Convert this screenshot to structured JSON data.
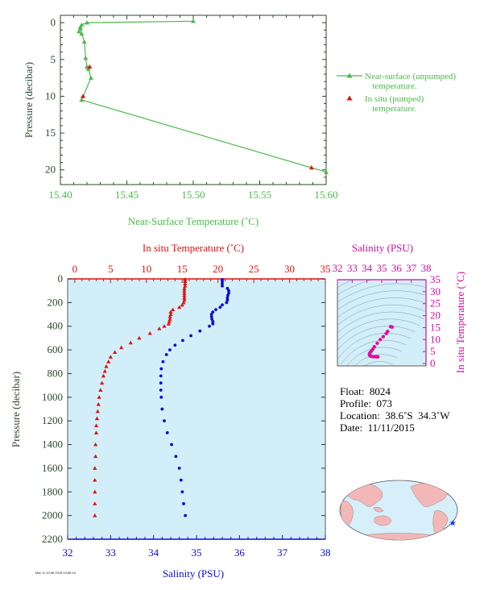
{
  "chart_data": [
    {
      "type": "line",
      "xlabel": "Near-Surface Temperature (˚C)",
      "ylabel": "Pressure (decibar)",
      "xlim": [
        15.4,
        15.6
      ],
      "ylim": [
        22,
        -1
      ],
      "xticks": [
        "15.40",
        "15.45",
        "15.50",
        "15.55",
        "15.60"
      ],
      "xtick_values": [
        15.4,
        15.45,
        15.5,
        15.55,
        15.6
      ],
      "yticks": [
        "0",
        "5",
        "10",
        "15",
        "20"
      ],
      "ytick_values": [
        0,
        5,
        10,
        15,
        20
      ],
      "legend_position": "right",
      "series": [
        {
          "name": "Near-surface (unpumped) temperature.",
          "legend_lines": [
            "Near-surface (unpumped)",
            "temperature."
          ],
          "color": "#4cb84c",
          "marker": "triangle",
          "x": [
            15.5,
            15.42,
            15.416,
            15.415,
            15.414,
            15.415,
            15.416,
            15.418,
            15.419,
            15.42,
            15.421,
            15.423,
            15.416,
            15.6
          ],
          "y": [
            -0.2,
            0.0,
            0.3,
            0.8,
            1.2,
            0.6,
            1.5,
            2.6,
            4.8,
            6.0,
            6.3,
            7.5,
            10.5,
            20.3
          ]
        },
        {
          "name": "In situ (pumped) temperature.",
          "legend_lines": [
            "In situ (pumped)",
            "temperature."
          ],
          "color": "#dd1111",
          "marker": "triangle",
          "x": [
            15.422,
            15.417,
            15.589
          ],
          "y": [
            6.0,
            10.0,
            19.7
          ]
        }
      ]
    },
    {
      "type": "scatter",
      "title_top": "In situ Temperature (˚C)",
      "xlabel": "Salinity (PSU)",
      "ylabel": "Pressure (decibar)",
      "temp_lim": [
        -1,
        35
      ],
      "temp_ticks": [
        "0",
        "5",
        "10",
        "15",
        "20",
        "25",
        "30",
        "35"
      ],
      "temp_tick_values": [
        0,
        5,
        10,
        15,
        20,
        25,
        30,
        35
      ],
      "sal_lim": [
        32,
        38
      ],
      "sal_ticks": [
        "32",
        "33",
        "34",
        "35",
        "36",
        "37",
        "38"
      ],
      "sal_tick_values": [
        32,
        33,
        34,
        35,
        36,
        37,
        38
      ],
      "pres_lim": [
        0,
        2200
      ],
      "pres_ticks": [
        "0",
        "200",
        "400",
        "600",
        "800",
        "1000",
        "1200",
        "1400",
        "1600",
        "1800",
        "2000",
        "2200"
      ],
      "pres_tick_values": [
        0,
        200,
        400,
        600,
        800,
        1000,
        1200,
        1400,
        1600,
        1800,
        2000,
        2200
      ],
      "temperature": {
        "color": "#e01010",
        "pressure": [
          5,
          20,
          40,
          60,
          80,
          100,
          120,
          140,
          160,
          180,
          200,
          220,
          240,
          260,
          280,
          300,
          320,
          340,
          360,
          380,
          400,
          420,
          460,
          500,
          540,
          580,
          620,
          660,
          700,
          740,
          780,
          820,
          880,
          940,
          1000,
          1060,
          1120,
          1180,
          1240,
          1300,
          1400,
          1500,
          1600,
          1700,
          1800,
          1900,
          2000
        ],
        "values": [
          15.4,
          15.4,
          15.4,
          15.4,
          15.3,
          15.3,
          15.3,
          15.3,
          15.3,
          15.3,
          15.2,
          15.0,
          14.6,
          13.7,
          13.4,
          13.4,
          13.3,
          13.3,
          13.2,
          13.1,
          12.5,
          11.8,
          10.5,
          9.0,
          7.8,
          6.5,
          5.6,
          5.0,
          4.7,
          4.4,
          4.2,
          4.0,
          3.8,
          3.6,
          3.4,
          3.3,
          3.2,
          3.1,
          3.0,
          3.0,
          2.9,
          2.9,
          2.8,
          2.8,
          2.8,
          2.8,
          2.8
        ]
      },
      "salinity": {
        "color": "#0a0ad8",
        "pressure": [
          5,
          20,
          40,
          60,
          80,
          100,
          120,
          140,
          160,
          180,
          200,
          220,
          240,
          260,
          280,
          300,
          320,
          340,
          360,
          380,
          400,
          440,
          480,
          520,
          560,
          600,
          640,
          700,
          760,
          820,
          880,
          940,
          1000,
          1100,
          1200,
          1300,
          1400,
          1500,
          1600,
          1700,
          1800,
          1900,
          2000
        ],
        "values": [
          35.6,
          35.6,
          35.6,
          35.6,
          35.72,
          35.75,
          35.75,
          35.73,
          35.72,
          35.72,
          35.7,
          35.6,
          35.55,
          35.45,
          35.38,
          35.35,
          35.35,
          35.36,
          35.38,
          35.38,
          35.3,
          35.08,
          34.87,
          34.68,
          34.5,
          34.38,
          34.3,
          34.22,
          34.18,
          34.17,
          34.17,
          34.17,
          34.18,
          34.2,
          34.25,
          34.32,
          34.42,
          34.52,
          34.6,
          34.64,
          34.67,
          34.7,
          34.74
        ]
      }
    },
    {
      "type": "scatter",
      "title_top": "Salinity (PSU)",
      "ylabel": "In situ Temperature (˚C)",
      "sal_lim": [
        32,
        38
      ],
      "sal_ticks": [
        "32",
        "33",
        "34",
        "35",
        "36",
        "37",
        "38"
      ],
      "sal_tick_values": [
        32,
        33,
        34,
        35,
        36,
        37,
        38
      ],
      "temp_lim": [
        -1,
        35
      ],
      "temp_ticks": [
        "0",
        "5",
        "10",
        "15",
        "20",
        "25",
        "30",
        "35"
      ],
      "temp_tick_values": [
        0,
        5,
        10,
        15,
        20,
        25,
        30,
        35
      ],
      "color": "#e0109a",
      "points": [
        [
          35.6,
          15.4
        ],
        [
          35.7,
          15.2
        ],
        [
          35.4,
          13.4
        ],
        [
          35.3,
          12.5
        ],
        [
          35.1,
          11.2
        ],
        [
          34.9,
          10.0
        ],
        [
          34.7,
          8.5
        ],
        [
          34.5,
          7.0
        ],
        [
          34.4,
          6.0
        ],
        [
          34.3,
          5.2
        ],
        [
          34.22,
          4.6
        ],
        [
          34.18,
          4.2
        ],
        [
          34.17,
          3.8
        ],
        [
          34.18,
          3.5
        ],
        [
          34.2,
          3.3
        ],
        [
          34.25,
          3.1
        ],
        [
          34.32,
          3.0
        ],
        [
          34.42,
          2.9
        ],
        [
          34.52,
          2.9
        ],
        [
          34.6,
          2.8
        ],
        [
          34.67,
          2.8
        ],
        [
          34.74,
          2.8
        ]
      ]
    }
  ],
  "float_info": {
    "float": "Float:  8024",
    "profile": "Profile:  073",
    "location": "Location:  38.6˚S  34.3˚W",
    "date": "Date:  11/11/2015"
  },
  "map": {
    "ocean_color": "#d6effa",
    "land_color": "#f2b8b8",
    "marker_color": "#1a33ff",
    "marker_lat": -38.6,
    "marker_lon": -34.3
  },
  "stamp": "Mar 11 20:56 2016 04:56:16"
}
